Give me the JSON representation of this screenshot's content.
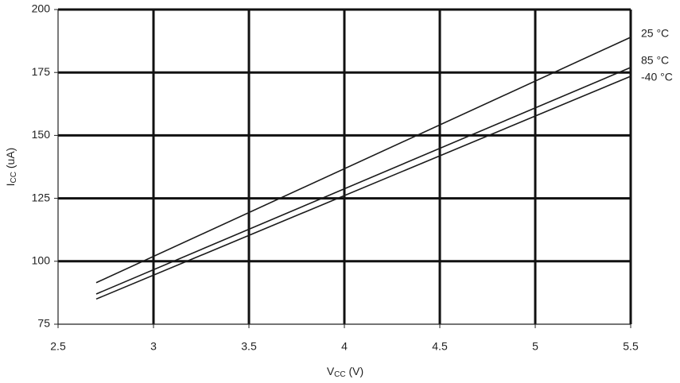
{
  "chart_data": {
    "type": "line",
    "xlabel": {
      "base": "V",
      "sub": "CC",
      "unit": " (V)"
    },
    "ylabel": {
      "base": "I",
      "sub": "CC",
      "unit": " (uA)"
    },
    "x": [
      2.7,
      5.5
    ],
    "series": [
      {
        "name": "25 °C",
        "color": "#1a1a1a",
        "values": [
          91.5,
          189
        ]
      },
      {
        "name": "85 °C",
        "color": "#1a1a1a",
        "values": [
          87,
          177
        ]
      },
      {
        "name": "-40 °C",
        "color": "#1a1a1a",
        "values": [
          85,
          173.5
        ]
      }
    ],
    "xlim": [
      2.5,
      5.5
    ],
    "xticks": [
      2.5,
      3,
      3.5,
      4,
      4.5,
      5,
      5.5
    ],
    "ylim": [
      75,
      200
    ],
    "yticks": [
      75,
      100,
      125,
      150,
      175,
      200
    ],
    "grid": true,
    "grid_color": "#111111"
  }
}
